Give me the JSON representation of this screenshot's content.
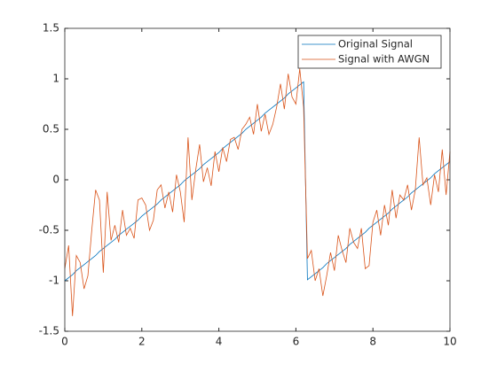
{
  "chart_data": {
    "type": "line",
    "x": [
      0,
      0.1,
      0.2,
      0.3,
      0.4,
      0.5,
      0.6,
      0.7,
      0.8,
      0.9,
      1,
      1.1,
      1.2,
      1.3,
      1.4,
      1.5,
      1.6,
      1.7,
      1.8,
      1.9,
      2,
      2.1,
      2.2,
      2.3,
      2.4,
      2.5,
      2.6,
      2.7,
      2.8,
      2.9,
      3,
      3.1,
      3.2,
      3.3,
      3.4,
      3.5,
      3.6,
      3.7,
      3.8,
      3.9,
      4,
      4.1,
      4.2,
      4.3,
      4.4,
      4.5,
      4.6,
      4.7,
      4.8,
      4.9,
      5,
      5.1,
      5.2,
      5.3,
      5.4,
      5.5,
      5.6,
      5.7,
      5.8,
      5.9,
      6,
      6.1,
      6.2,
      6.3,
      6.4,
      6.5,
      6.6,
      6.7,
      6.8,
      6.9,
      7,
      7.1,
      7.2,
      7.3,
      7.4,
      7.5,
      7.6,
      7.7,
      7.8,
      7.9,
      8,
      8.1,
      8.2,
      8.3,
      8.4,
      8.5,
      8.6,
      8.7,
      8.8,
      8.9,
      9,
      9.1,
      9.2,
      9.3,
      9.4,
      9.5,
      9.6,
      9.7,
      9.8,
      9.9,
      10
    ],
    "series": [
      {
        "name": "Original Signal",
        "color": "#0072BD",
        "values": [
          -1,
          -0.97,
          -0.94,
          -0.9,
          -0.87,
          -0.84,
          -0.81,
          -0.78,
          -0.75,
          -0.71,
          -0.68,
          -0.65,
          -0.62,
          -0.59,
          -0.55,
          -0.52,
          -0.49,
          -0.46,
          -0.43,
          -0.4,
          -0.36,
          -0.33,
          -0.3,
          -0.27,
          -0.24,
          -0.2,
          -0.17,
          -0.14,
          -0.11,
          -0.08,
          -0.05,
          -0.01,
          0.02,
          0.05,
          0.08,
          0.11,
          0.15,
          0.18,
          0.21,
          0.24,
          0.27,
          0.31,
          0.34,
          0.37,
          0.4,
          0.43,
          0.46,
          0.5,
          0.53,
          0.56,
          0.59,
          0.62,
          0.66,
          0.69,
          0.72,
          0.75,
          0.78,
          0.81,
          0.85,
          0.88,
          0.91,
          0.94,
          0.97,
          -0.99,
          -0.96,
          -0.93,
          -0.9,
          -0.87,
          -0.83,
          -0.8,
          -0.77,
          -0.74,
          -0.71,
          -0.68,
          -0.64,
          -0.61,
          -0.58,
          -0.55,
          -0.52,
          -0.48,
          -0.45,
          -0.42,
          -0.39,
          -0.36,
          -0.33,
          -0.29,
          -0.26,
          -0.23,
          -0.2,
          -0.17,
          -0.13,
          -0.1,
          -0.07,
          -0.04,
          -0.01,
          0.02,
          0.06,
          0.09,
          0.12,
          0.15,
          0.18
        ]
      },
      {
        "name": "Signal with AWGN",
        "color": "#D95319",
        "values": [
          -0.88,
          -0.65,
          -1.35,
          -0.75,
          -0.82,
          -1.08,
          -0.95,
          -0.5,
          -0.1,
          -0.2,
          -0.92,
          -0.12,
          -0.6,
          -0.45,
          -0.62,
          -0.3,
          -0.55,
          -0.48,
          -0.58,
          -0.2,
          -0.18,
          -0.25,
          -0.5,
          -0.4,
          -0.1,
          -0.05,
          -0.28,
          -0.12,
          -0.32,
          0.05,
          -0.12,
          -0.42,
          0.42,
          -0.2,
          0.1,
          0.35,
          -0.02,
          0.12,
          -0.06,
          0.28,
          0.08,
          0.32,
          0.18,
          0.4,
          0.42,
          0.3,
          0.5,
          0.55,
          0.62,
          0.45,
          0.75,
          0.48,
          0.65,
          0.45,
          0.55,
          0.72,
          0.95,
          0.7,
          1.05,
          0.82,
          0.75,
          1.1,
          0.72,
          -0.78,
          -0.7,
          -1,
          -0.88,
          -1.15,
          -0.95,
          -0.72,
          -0.9,
          -0.55,
          -0.7,
          -0.82,
          -0.48,
          -0.62,
          -0.68,
          -0.48,
          -0.88,
          -0.85,
          -0.42,
          -0.3,
          -0.55,
          -0.25,
          -0.45,
          -0.1,
          -0.38,
          -0.15,
          -0.2,
          -0.05,
          -0.3,
          -0.1,
          0.42,
          -0.05,
          0.02,
          -0.25,
          0.05,
          -0.12,
          0.3,
          -0.15,
          0.28
        ]
      }
    ],
    "xlim": [
      0,
      10
    ],
    "xticks": [
      0,
      2,
      4,
      6,
      8,
      10
    ],
    "ylim": [
      -1.5,
      1.5
    ],
    "yticks": [
      -1.5,
      -1,
      -0.5,
      0,
      0.5,
      1,
      1.5
    ],
    "legend": "northeast"
  }
}
